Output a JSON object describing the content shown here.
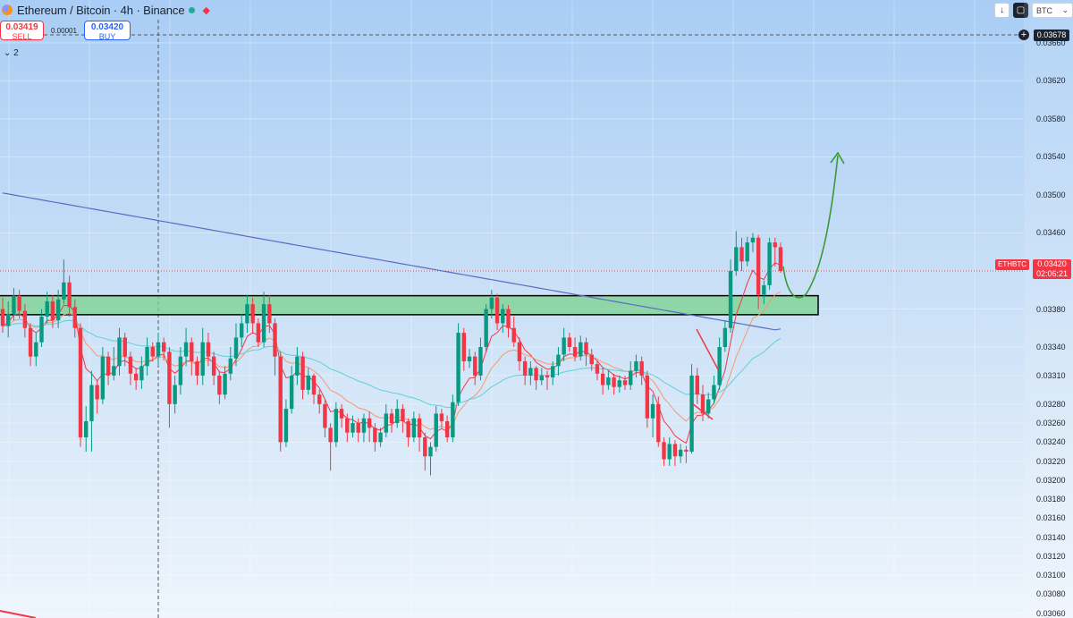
{
  "header": {
    "title": "Ethereum / Bitcoin · 4h · Binance",
    "sell_price": "0.03419",
    "sell_label": "SELL",
    "spread": "0.00001",
    "buy_price": "0.03420",
    "buy_label": "BUY",
    "indicators_count": "2"
  },
  "toolbar": {
    "download_icon": "↓",
    "currency_label": "BTC",
    "currency_chevron": "⌄"
  },
  "crosshair": {
    "price": "0.03678"
  },
  "last_price": {
    "symbol": "ETHBTC",
    "price": "0.03420",
    "countdown": "02:06:21"
  },
  "colors": {
    "bull": "#089981",
    "bear": "#f23645",
    "ma_long": "#5b6cc8",
    "ma_cyan": "#5ed1d9",
    "ma_orange": "#f59a6a",
    "ma_red": "#f23645",
    "zone_fill": "#7ad18e",
    "projection": "#3a9a3a"
  },
  "chart_data": {
    "type": "candlestick",
    "symbol": "ETHBTC",
    "interval": "4h",
    "exchange": "Binance",
    "ylim": [
      0.03055,
      0.03705
    ],
    "y_ticks": [
      "0.03660",
      "0.03620",
      "0.03580",
      "0.03540",
      "0.03500",
      "0.03460",
      "0.03420",
      "0.03380",
      "0.03340",
      "0.03310",
      "0.03280",
      "0.03260",
      "0.03240",
      "0.03220",
      "0.03200",
      "0.03180",
      "0.03160",
      "0.03140",
      "0.03120",
      "0.03100",
      "0.03080",
      "0.03060"
    ],
    "grid": true,
    "candles": [
      [
        0.0338,
        0.03362,
        0.03392,
        0.03355
      ],
      [
        0.03362,
        0.03375,
        0.03388,
        0.0335
      ],
      [
        0.03375,
        0.03394,
        0.03402,
        0.03368
      ],
      [
        0.03394,
        0.03378,
        0.034,
        0.0337
      ],
      [
        0.03378,
        0.0336,
        0.03385,
        0.0335
      ],
      [
        0.0336,
        0.0333,
        0.03365,
        0.0332
      ],
      [
        0.0333,
        0.03345,
        0.03355,
        0.0332
      ],
      [
        0.03345,
        0.03372,
        0.0338,
        0.0334
      ],
      [
        0.03372,
        0.03388,
        0.03398,
        0.03365
      ],
      [
        0.03388,
        0.03368,
        0.03395,
        0.0336
      ],
      [
        0.03368,
        0.0339,
        0.034,
        0.0336
      ],
      [
        0.0339,
        0.03408,
        0.03432,
        0.03385
      ],
      [
        0.03408,
        0.03382,
        0.03415,
        0.03372
      ],
      [
        0.03382,
        0.0336,
        0.0339,
        0.0335
      ],
      [
        0.0336,
        0.03245,
        0.03365,
        0.03235
      ],
      [
        0.03245,
        0.03262,
        0.03278,
        0.0323
      ],
      [
        0.03262,
        0.033,
        0.03315,
        0.0323
      ],
      [
        0.033,
        0.03285,
        0.03305,
        0.0327
      ],
      [
        0.03285,
        0.0333,
        0.0334,
        0.0328
      ],
      [
        0.0333,
        0.0331,
        0.03335,
        0.033
      ],
      [
        0.0331,
        0.0332,
        0.0334,
        0.03305
      ],
      [
        0.0332,
        0.0335,
        0.0336,
        0.0331
      ],
      [
        0.0335,
        0.0333,
        0.03355,
        0.0332
      ],
      [
        0.0333,
        0.03312,
        0.03335,
        0.033
      ],
      [
        0.03312,
        0.03305,
        0.03318,
        0.03295
      ],
      [
        0.03305,
        0.0332,
        0.0333,
        0.03296
      ],
      [
        0.0332,
        0.0334,
        0.0335,
        0.0331
      ],
      [
        0.0334,
        0.0333,
        0.03345,
        0.03325
      ],
      [
        0.0333,
        0.03345,
        0.03355,
        0.0332
      ],
      [
        0.03345,
        0.03335,
        0.0335,
        0.03326
      ],
      [
        0.03335,
        0.0328,
        0.0334,
        0.03255
      ],
      [
        0.0328,
        0.033,
        0.0331,
        0.0327
      ],
      [
        0.033,
        0.0333,
        0.0334,
        0.0329
      ],
      [
        0.0333,
        0.03345,
        0.0336,
        0.0332
      ],
      [
        0.03345,
        0.03325,
        0.0335,
        0.0331
      ],
      [
        0.03325,
        0.0331,
        0.0333,
        0.033
      ],
      [
        0.0331,
        0.03345,
        0.0336,
        0.033
      ],
      [
        0.03345,
        0.0333,
        0.03355,
        0.0332
      ],
      [
        0.0333,
        0.0331,
        0.03335,
        0.033
      ],
      [
        0.0331,
        0.0329,
        0.03315,
        0.0328
      ],
      [
        0.0329,
        0.03312,
        0.0332,
        0.03285
      ],
      [
        0.03312,
        0.03328,
        0.0334,
        0.03305
      ],
      [
        0.03328,
        0.0335,
        0.03365,
        0.0332
      ],
      [
        0.0335,
        0.03365,
        0.03375,
        0.0334
      ],
      [
        0.03365,
        0.03385,
        0.03395,
        0.03355
      ],
      [
        0.03385,
        0.03365,
        0.03392,
        0.03355
      ],
      [
        0.03365,
        0.03345,
        0.0337,
        0.0334
      ],
      [
        0.03345,
        0.03385,
        0.03398,
        0.0334
      ],
      [
        0.03385,
        0.03365,
        0.03395,
        0.03355
      ],
      [
        0.03365,
        0.0333,
        0.0337,
        0.0331
      ],
      [
        0.0333,
        0.0324,
        0.03335,
        0.0323
      ],
      [
        0.0324,
        0.03275,
        0.03285,
        0.03235
      ],
      [
        0.03275,
        0.0331,
        0.0332,
        0.0327
      ],
      [
        0.0331,
        0.0333,
        0.0334,
        0.033
      ],
      [
        0.0333,
        0.03295,
        0.03335,
        0.03285
      ],
      [
        0.03295,
        0.0331,
        0.03318,
        0.0329
      ],
      [
        0.0331,
        0.0329,
        0.03312,
        0.0328
      ],
      [
        0.0329,
        0.0328,
        0.03295,
        0.0327
      ],
      [
        0.0328,
        0.03255,
        0.03284,
        0.03245
      ],
      [
        0.03255,
        0.0324,
        0.0326,
        0.0321
      ],
      [
        0.0324,
        0.03275,
        0.03282,
        0.03235
      ],
      [
        0.03275,
        0.03265,
        0.0328,
        0.03255
      ],
      [
        0.03265,
        0.0325,
        0.0327,
        0.0324
      ],
      [
        0.0325,
        0.0326,
        0.03268,
        0.03245
      ],
      [
        0.0326,
        0.0325,
        0.03265,
        0.0324
      ],
      [
        0.0325,
        0.03265,
        0.0327,
        0.0324
      ],
      [
        0.03265,
        0.03255,
        0.03272,
        0.0324
      ],
      [
        0.03255,
        0.0324,
        0.0326,
        0.0323
      ],
      [
        0.0324,
        0.0325,
        0.03255,
        0.03235
      ],
      [
        0.0325,
        0.0327,
        0.0328,
        0.03245
      ],
      [
        0.0327,
        0.0326,
        0.03275,
        0.0325
      ],
      [
        0.0326,
        0.03275,
        0.03285,
        0.03255
      ],
      [
        0.03275,
        0.03262,
        0.0328,
        0.0325
      ],
      [
        0.03262,
        0.03245,
        0.03265,
        0.03235
      ],
      [
        0.03245,
        0.03265,
        0.03272,
        0.0324
      ],
      [
        0.03265,
        0.03245,
        0.0327,
        0.0323
      ],
      [
        0.03245,
        0.03225,
        0.0325,
        0.0321
      ],
      [
        0.03225,
        0.03235,
        0.0324,
        0.03205
      ],
      [
        0.03235,
        0.0327,
        0.03278,
        0.0323
      ],
      [
        0.0327,
        0.03262,
        0.03275,
        0.03255
      ],
      [
        0.03262,
        0.03245,
        0.03268,
        0.0324
      ],
      [
        0.03245,
        0.03282,
        0.0329,
        0.0324
      ],
      [
        0.03282,
        0.03355,
        0.03365,
        0.03278
      ],
      [
        0.03355,
        0.03325,
        0.0336,
        0.03315
      ],
      [
        0.03325,
        0.0333,
        0.03338,
        0.03318
      ],
      [
        0.0333,
        0.0331,
        0.03335,
        0.033
      ],
      [
        0.0331,
        0.0334,
        0.0335,
        0.03305
      ],
      [
        0.0334,
        0.0338,
        0.03385,
        0.03335
      ],
      [
        0.0338,
        0.03392,
        0.034,
        0.0337
      ],
      [
        0.03392,
        0.03365,
        0.03396,
        0.03358
      ],
      [
        0.03365,
        0.0338,
        0.03385,
        0.03355
      ],
      [
        0.0338,
        0.0336,
        0.03384,
        0.0335
      ],
      [
        0.0336,
        0.03345,
        0.03372,
        0.0334
      ],
      [
        0.03345,
        0.03325,
        0.0335,
        0.03315
      ],
      [
        0.03325,
        0.0331,
        0.0333,
        0.033
      ],
      [
        0.0331,
        0.03318,
        0.03325,
        0.033
      ],
      [
        0.03318,
        0.03305,
        0.0332,
        0.03295
      ],
      [
        0.03305,
        0.0331,
        0.03318,
        0.033
      ],
      [
        0.0331,
        0.03308,
        0.03315,
        0.03295
      ],
      [
        0.03308,
        0.0332,
        0.03325,
        0.033
      ],
      [
        0.0332,
        0.03332,
        0.0334,
        0.0331
      ],
      [
        0.03332,
        0.0335,
        0.0336,
        0.03325
      ],
      [
        0.0335,
        0.0334,
        0.03355,
        0.03335
      ],
      [
        0.0334,
        0.0333,
        0.0335,
        0.03325
      ],
      [
        0.0333,
        0.03345,
        0.03352,
        0.03326
      ],
      [
        0.03345,
        0.03332,
        0.0335,
        0.0332
      ],
      [
        0.03332,
        0.03322,
        0.03338,
        0.03315
      ],
      [
        0.03322,
        0.03312,
        0.03325,
        0.03305
      ],
      [
        0.03312,
        0.033,
        0.03318,
        0.0329
      ],
      [
        0.033,
        0.03308,
        0.03315,
        0.03295
      ],
      [
        0.03308,
        0.03298,
        0.03312,
        0.0329
      ],
      [
        0.03298,
        0.03305,
        0.0331,
        0.03292
      ],
      [
        0.03305,
        0.033,
        0.0331,
        0.03295
      ],
      [
        0.033,
        0.03315,
        0.03325,
        0.03295
      ],
      [
        0.03315,
        0.03325,
        0.03332,
        0.03308
      ],
      [
        0.03325,
        0.0331,
        0.0333,
        0.033
      ],
      [
        0.0331,
        0.03265,
        0.03315,
        0.03255
      ],
      [
        0.03265,
        0.0328,
        0.0329,
        0.03245
      ],
      [
        0.0328,
        0.0324,
        0.03288,
        0.03235
      ],
      [
        0.0324,
        0.03222,
        0.03245,
        0.03215
      ],
      [
        0.03222,
        0.03238,
        0.03245,
        0.03215
      ],
      [
        0.03238,
        0.03225,
        0.03242,
        0.03215
      ],
      [
        0.03225,
        0.03232,
        0.03238,
        0.03218
      ],
      [
        0.03232,
        0.0323,
        0.03236,
        0.03218
      ],
      [
        0.0323,
        0.0331,
        0.03322,
        0.03228
      ],
      [
        0.0331,
        0.0329,
        0.03318,
        0.0328
      ],
      [
        0.0329,
        0.0327,
        0.033,
        0.03262
      ],
      [
        0.0327,
        0.03285,
        0.03292,
        0.03265
      ],
      [
        0.03285,
        0.033,
        0.0331,
        0.0328
      ],
      [
        0.033,
        0.0334,
        0.0335,
        0.03295
      ],
      [
        0.0334,
        0.0336,
        0.03368,
        0.03335
      ],
      [
        0.0336,
        0.0342,
        0.03432,
        0.03355
      ],
      [
        0.0342,
        0.03445,
        0.03462,
        0.03415
      ],
      [
        0.03445,
        0.0343,
        0.03455,
        0.0342
      ],
      [
        0.0343,
        0.0345,
        0.03456,
        0.03425
      ],
      [
        0.0345,
        0.03455,
        0.0346,
        0.0344
      ],
      [
        0.03455,
        0.03395,
        0.03458,
        0.0338
      ],
      [
        0.03395,
        0.03405,
        0.0341,
        0.03385
      ],
      [
        0.03405,
        0.0345,
        0.03455,
        0.034
      ],
      [
        0.0345,
        0.03445,
        0.03455,
        0.03425
      ],
      [
        0.03445,
        0.0342,
        0.0345,
        0.03418
      ]
    ],
    "zone": [
      0.03374,
      0.03394
    ]
  }
}
